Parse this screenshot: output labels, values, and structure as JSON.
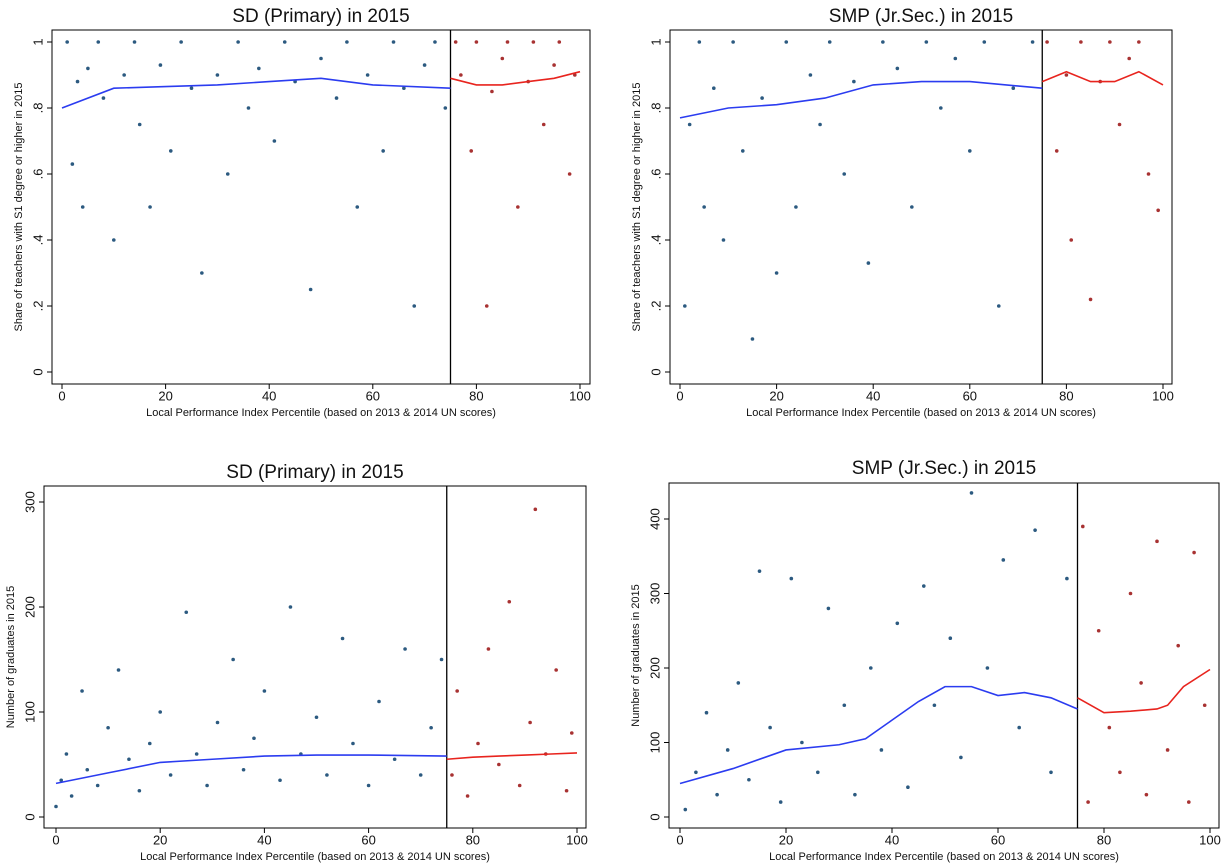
{
  "chart_data": [
    {
      "type": "scatter",
      "title": "SD (Primary) in 2015",
      "x_label": "Local Performance Index Percentile (based on 2013 & 2014 UN scores)",
      "y_label": "Share of teachers with S1 degree or higher in 2015",
      "xlim": [
        0,
        100
      ],
      "ylim": [
        0,
        1
      ],
      "xticks": [
        0,
        20,
        40,
        60,
        80,
        100
      ],
      "yticks": [
        0,
        {
          "value": 0.2,
          "label": ".2"
        },
        {
          "value": 0.4,
          "label": ".4"
        },
        {
          "value": 0.6,
          "label": ".6"
        },
        {
          "value": 0.8,
          "label": ".8"
        },
        1
      ],
      "cutoff": 75,
      "points": [
        {
          "color": "#2c5a80",
          "x": [
            1,
            2,
            3,
            4,
            5,
            7,
            8,
            10,
            12,
            14,
            15,
            17,
            19,
            21,
            23,
            25,
            27,
            30,
            32,
            34,
            36,
            38,
            41,
            43,
            45,
            48,
            50,
            53,
            55,
            57,
            59,
            62,
            64,
            66,
            68,
            70,
            72,
            74
          ],
          "values": [
            1,
            0.63,
            0.88,
            0.5,
            0.92,
            1,
            0.83,
            0.4,
            0.9,
            1,
            0.75,
            0.5,
            0.93,
            0.67,
            1,
            0.86,
            0.3,
            0.9,
            0.6,
            1,
            0.8,
            0.92,
            0.7,
            1,
            0.88,
            0.25,
            0.95,
            0.83,
            1,
            0.5,
            0.9,
            0.67,
            1,
            0.86,
            0.2,
            0.93,
            1,
            0.8
          ]
        },
        {
          "color": "#a83232",
          "x": [
            76,
            77,
            79,
            80,
            82,
            83,
            85,
            86,
            88,
            90,
            91,
            93,
            95,
            96,
            98,
            99
          ],
          "values": [
            1,
            0.9,
            0.67,
            1,
            0.2,
            0.85,
            0.95,
            1,
            0.5,
            0.88,
            1,
            0.75,
            0.93,
            1,
            0.6,
            0.9
          ]
        }
      ],
      "lines": [
        {
          "color": "#2b3cf0",
          "x": [
            0,
            10,
            20,
            30,
            40,
            50,
            60,
            75
          ],
          "values": [
            0.8,
            0.86,
            0.865,
            0.87,
            0.88,
            0.89,
            0.87,
            0.86
          ]
        },
        {
          "color": "#e8241e",
          "x": [
            75,
            80,
            85,
            90,
            95,
            100
          ],
          "values": [
            0.89,
            0.87,
            0.87,
            0.88,
            0.89,
            0.91
          ]
        }
      ]
    },
    {
      "type": "scatter",
      "title": "SMP (Jr.Sec.) in 2015",
      "x_label": "Local Performance Index Percentile (based on 2013 & 2014 UN scores)",
      "y_label": "Share of teachers with S1 degree or higher in 2015",
      "xlim": [
        0,
        100
      ],
      "ylim": [
        0,
        1
      ],
      "xticks": [
        0,
        20,
        40,
        60,
        80,
        100
      ],
      "yticks": [
        0,
        {
          "value": 0.2,
          "label": ".2"
        },
        {
          "value": 0.4,
          "label": ".4"
        },
        {
          "value": 0.6,
          "label": ".6"
        },
        {
          "value": 0.8,
          "label": ".8"
        },
        1
      ],
      "cutoff": 75,
      "points": [
        {
          "color": "#2c5a80",
          "x": [
            1,
            2,
            4,
            5,
            7,
            9,
            11,
            13,
            15,
            17,
            20,
            22,
            24,
            27,
            29,
            31,
            34,
            36,
            39,
            42,
            45,
            48,
            51,
            54,
            57,
            60,
            63,
            66,
            69,
            73
          ],
          "values": [
            0.2,
            0.75,
            1,
            0.5,
            0.86,
            0.4,
            1,
            0.67,
            0.1,
            0.83,
            0.3,
            1,
            0.5,
            0.9,
            0.75,
            1,
            0.6,
            0.88,
            0.33,
            1,
            0.92,
            0.5,
            1,
            0.8,
            0.95,
            0.67,
            1,
            0.2,
            0.86,
            1
          ]
        },
        {
          "color": "#a83232",
          "x": [
            76,
            78,
            80,
            81,
            83,
            85,
            87,
            89,
            91,
            93,
            95,
            97,
            99
          ],
          "values": [
            1,
            0.67,
            0.9,
            0.4,
            1,
            0.22,
            0.88,
            1,
            0.75,
            0.95,
            1,
            0.6,
            0.49
          ]
        }
      ],
      "lines": [
        {
          "color": "#2b3cf0",
          "x": [
            0,
            10,
            20,
            30,
            40,
            50,
            60,
            75
          ],
          "values": [
            0.77,
            0.8,
            0.81,
            0.83,
            0.87,
            0.88,
            0.88,
            0.86
          ]
        },
        {
          "color": "#e8241e",
          "x": [
            75,
            80,
            85,
            90,
            95,
            100
          ],
          "values": [
            0.88,
            0.91,
            0.88,
            0.88,
            0.91,
            0.87
          ]
        }
      ]
    },
    {
      "type": "scatter",
      "title": "SD (Primary) in 2015",
      "x_label": "Local Performance Index Percentile (based on 2013 & 2014 UN scores)",
      "y_label": "Number of graduates in 2015",
      "xlim": [
        0,
        100
      ],
      "ylim": [
        0,
        300
      ],
      "xticks": [
        0,
        20,
        40,
        60,
        80,
        100
      ],
      "yticks": [
        0,
        100,
        200,
        300
      ],
      "cutoff": 75,
      "points": [
        {
          "color": "#2c5a80",
          "x": [
            0,
            1,
            2,
            3,
            5,
            6,
            8,
            10,
            12,
            14,
            16,
            18,
            20,
            22,
            25,
            27,
            29,
            31,
            34,
            36,
            38,
            40,
            43,
            45,
            47,
            50,
            52,
            55,
            57,
            60,
            62,
            65,
            67,
            70,
            72,
            74
          ],
          "values": [
            10,
            35,
            60,
            20,
            120,
            45,
            30,
            85,
            140,
            55,
            25,
            70,
            100,
            40,
            195,
            60,
            30,
            90,
            150,
            45,
            75,
            120,
            35,
            200,
            60,
            95,
            40,
            170,
            70,
            30,
            110,
            55,
            160,
            40,
            85,
            150
          ]
        },
        {
          "color": "#a83232",
          "x": [
            76,
            77,
            79,
            81,
            83,
            85,
            87,
            89,
            91,
            92,
            94,
            96,
            98,
            99
          ],
          "values": [
            40,
            120,
            20,
            70,
            160,
            50,
            205,
            30,
            90,
            293,
            60,
            140,
            25,
            80
          ]
        }
      ],
      "lines": [
        {
          "color": "#2b3cf0",
          "x": [
            0,
            10,
            20,
            30,
            40,
            50,
            60,
            75
          ],
          "values": [
            32,
            42,
            52,
            55,
            58,
            59,
            59,
            58
          ]
        },
        {
          "color": "#e8241e",
          "x": [
            75,
            80,
            85,
            90,
            95,
            100
          ],
          "values": [
            55,
            57,
            58,
            59,
            60,
            61
          ]
        }
      ]
    },
    {
      "type": "scatter",
      "title": "SMP (Jr.Sec.) in 2015",
      "x_label": "Local Performance Index Percentile (based on 2013 & 2014 UN scores)",
      "y_label": "Number of graduates in 2015",
      "xlim": [
        0,
        100
      ],
      "ylim": [
        0,
        400
      ],
      "xticks": [
        0,
        20,
        40,
        60,
        80,
        100
      ],
      "yticks": [
        0,
        100,
        200,
        300,
        400
      ],
      "cutoff": 75,
      "points": [
        {
          "color": "#2c5a80",
          "x": [
            1,
            3,
            5,
            7,
            9,
            11,
            13,
            15,
            17,
            19,
            21,
            23,
            26,
            28,
            31,
            33,
            36,
            38,
            41,
            43,
            46,
            48,
            51,
            53,
            55,
            58,
            61,
            64,
            67,
            70,
            73
          ],
          "values": [
            10,
            60,
            140,
            30,
            90,
            180,
            50,
            330,
            120,
            20,
            320,
            100,
            60,
            280,
            150,
            30,
            200,
            90,
            260,
            40,
            310,
            150,
            240,
            80,
            435,
            200,
            345,
            120,
            385,
            60,
            320
          ]
        },
        {
          "color": "#a83232",
          "x": [
            76,
            77,
            79,
            81,
            83,
            85,
            87,
            88,
            90,
            92,
            94,
            96,
            97,
            99
          ],
          "values": [
            390,
            20,
            250,
            120,
            60,
            300,
            180,
            30,
            370,
            90,
            230,
            20,
            355,
            150
          ]
        }
      ],
      "lines": [
        {
          "color": "#2b3cf0",
          "x": [
            0,
            10,
            20,
            30,
            35,
            40,
            45,
            50,
            55,
            60,
            65,
            70,
            75
          ],
          "values": [
            45,
            65,
            90,
            97,
            105,
            130,
            155,
            175,
            175,
            163,
            167,
            160,
            145
          ]
        },
        {
          "color": "#e8241e",
          "x": [
            75,
            80,
            85,
            90,
            92,
            95,
            100
          ],
          "values": [
            160,
            140,
            142,
            145,
            150,
            175,
            198
          ]
        }
      ]
    }
  ]
}
